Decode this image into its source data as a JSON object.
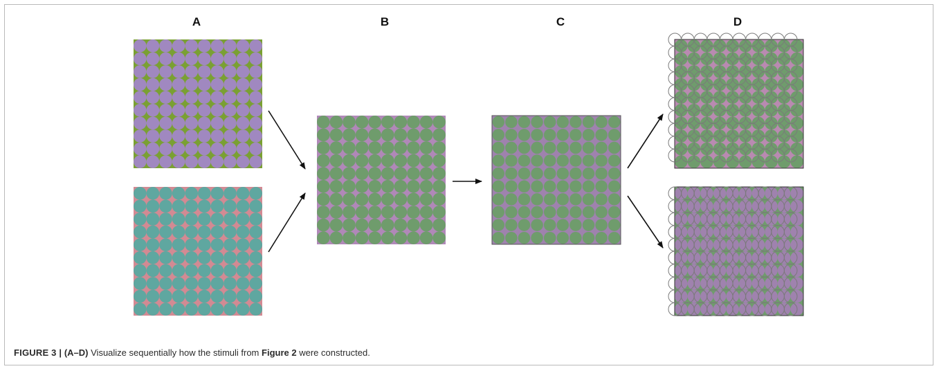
{
  "panels": [
    {
      "letter": "A"
    },
    {
      "letter": "B"
    },
    {
      "letter": "C"
    },
    {
      "letter": "D"
    }
  ],
  "colors": {
    "purple": "#a088c0",
    "green": "#7aa033",
    "teal": "#5fa7a0",
    "pink": "#d28a93",
    "mid_purple": "#9f82ae",
    "mid_green": "#6f9c6c",
    "outline_gray": "#7a7a7a"
  },
  "caption": {
    "figure_label": "FIGURE 3 |",
    "panels_ref": "(A–D)",
    "text_before": "Visualize sequentially how the stimuli from",
    "figure_ref": "Figure 2",
    "text_after": "were constructed."
  }
}
